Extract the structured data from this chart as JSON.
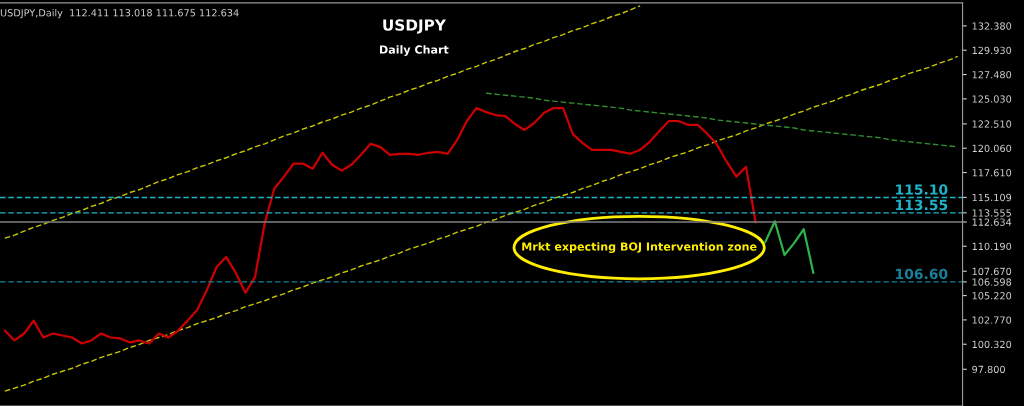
{
  "chart_data": {
    "type": "line",
    "title": "USDJPY",
    "subtitle": "Daily Chart",
    "annotations": [
      "USDJPY,Daily  112.411 113.018 111.675 112.634",
      "Mrkt expecting BOJ Intervention zone"
    ],
    "categories": [
      null,
      null,
      null,
      null,
      null,
      null,
      null,
      null,
      null,
      null,
      null,
      null,
      null,
      null,
      null,
      null,
      null,
      null,
      null,
      null,
      null,
      null,
      null,
      null,
      null,
      null,
      null,
      null,
      null,
      null,
      null,
      null,
      null,
      null,
      null,
      null,
      null,
      null,
      null,
      null,
      null,
      null,
      null,
      null,
      null,
      null,
      null,
      null,
      null,
      null,
      null,
      null,
      null,
      null,
      null,
      null,
      null,
      null,
      null,
      null,
      null,
      null,
      null,
      null,
      null,
      null,
      null,
      null,
      null,
      null,
      null,
      null,
      null,
      null,
      null,
      null,
      null,
      null,
      null,
      null,
      null,
      null,
      null,
      null,
      null,
      null,
      null,
      null,
      null,
      null,
      null,
      null,
      null,
      null,
      null,
      null,
      null,
      null,
      null,
      null
    ],
    "series": [
      {
        "color": "#c8c800",
        "line_style": "dashed",
        "values": [
          111.0,
          111.3,
          111.7,
          112.1,
          112.4,
          112.8,
          113.1,
          113.5,
          113.8,
          114.2,
          114.5,
          114.9,
          115.2,
          115.6,
          115.9,
          116.3,
          116.7,
          117.0,
          117.4,
          117.7,
          118.1,
          118.4,
          118.8,
          119.1,
          119.5,
          119.8,
          120.2,
          120.5,
          120.9,
          121.3,
          121.6,
          122.0,
          122.3,
          122.7,
          123.0,
          123.4,
          123.7,
          124.1,
          124.4,
          124.8,
          125.2,
          125.5,
          125.9,
          126.2,
          126.6,
          126.9,
          127.3,
          127.6,
          128.0,
          128.3,
          128.7,
          129.0,
          129.4,
          129.8,
          130.1,
          130.5,
          130.8,
          131.2,
          131.5,
          131.9,
          132.2,
          132.6,
          132.9,
          133.3,
          133.6,
          134.0,
          134.4,
          null,
          null,
          null,
          null,
          null,
          null,
          null,
          null,
          null,
          null,
          null,
          null,
          null,
          null,
          null,
          null,
          null,
          null,
          null,
          null,
          null,
          null,
          null,
          null,
          null,
          null,
          null,
          null,
          null,
          null,
          null,
          null,
          null
        ]
      },
      {
        "color": "#c8c800",
        "line_style": "dashed",
        "values": [
          95.6,
          95.9,
          96.2,
          96.6,
          96.9,
          97.3,
          97.6,
          97.9,
          98.3,
          98.6,
          99.0,
          99.3,
          99.6,
          100.0,
          100.3,
          100.7,
          101.0,
          101.3,
          101.7,
          102.0,
          102.4,
          102.7,
          103.0,
          103.4,
          103.7,
          104.1,
          104.4,
          104.7,
          105.1,
          105.4,
          105.8,
          106.1,
          106.5,
          106.8,
          107.1,
          107.5,
          107.8,
          108.2,
          108.5,
          108.8,
          109.2,
          109.5,
          109.9,
          110.2,
          110.5,
          110.9,
          111.2,
          111.6,
          111.9,
          112.2,
          112.6,
          112.9,
          113.3,
          113.6,
          113.9,
          114.3,
          114.6,
          115.0,
          115.3,
          115.6,
          116.0,
          116.3,
          116.7,
          117.0,
          117.4,
          117.7,
          118.0,
          118.4,
          118.7,
          119.1,
          119.4,
          119.7,
          120.1,
          120.4,
          120.8,
          121.1,
          121.4,
          121.8,
          122.1,
          122.5,
          122.8,
          123.1,
          123.5,
          123.8,
          124.2,
          124.5,
          124.8,
          125.2,
          125.5,
          125.9,
          126.2,
          126.5,
          126.9,
          127.2,
          127.6,
          127.9,
          128.2,
          128.6,
          128.9,
          129.3
        ]
      },
      {
        "color": "#2f8f2f",
        "line_style": "dashed",
        "values": [
          null,
          null,
          null,
          null,
          null,
          null,
          null,
          null,
          null,
          null,
          null,
          null,
          null,
          null,
          null,
          null,
          null,
          null,
          null,
          null,
          null,
          null,
          null,
          null,
          null,
          null,
          null,
          null,
          null,
          null,
          null,
          null,
          null,
          null,
          null,
          null,
          null,
          null,
          null,
          null,
          null,
          null,
          null,
          null,
          null,
          null,
          null,
          null,
          null,
          null,
          125.6,
          125.5,
          125.4,
          125.3,
          125.2,
          125.1,
          124.9,
          124.8,
          124.7,
          124.6,
          124.5,
          124.4,
          124.3,
          124.2,
          124.1,
          123.9,
          123.8,
          123.7,
          123.6,
          123.5,
          123.4,
          123.3,
          123.2,
          123.1,
          122.9,
          122.8,
          122.7,
          122.6,
          122.5,
          122.4,
          122.3,
          122.2,
          122.1,
          121.9,
          121.8,
          121.7,
          121.6,
          121.5,
          121.4,
          121.3,
          121.2,
          121.1,
          120.9,
          120.8,
          120.7,
          120.6,
          120.5,
          120.4,
          120.3,
          120.2
        ]
      },
      {
        "color": "#cc0000",
        "line_style": "solid",
        "values": [
          101.7,
          100.7,
          101.4,
          102.7,
          101.0,
          101.4,
          101.2,
          101.0,
          100.4,
          100.7,
          101.4,
          101.0,
          100.9,
          100.5,
          100.7,
          100.4,
          101.4,
          101.0,
          101.7,
          102.7,
          103.8,
          105.8,
          108.1,
          109.1,
          107.5,
          105.5,
          107.1,
          112.5,
          116.0,
          117.2,
          118.5,
          118.5,
          118.0,
          119.6,
          118.4,
          117.8,
          118.4,
          119.4,
          120.5,
          120.2,
          119.4,
          119.5,
          119.5,
          119.4,
          119.6,
          119.7,
          119.5,
          120.9,
          122.8,
          124.1,
          123.7,
          123.4,
          123.3,
          122.5,
          121.9,
          122.6,
          123.6,
          124.1,
          124.1,
          121.5,
          120.6,
          119.9,
          119.9,
          119.9,
          119.7,
          119.5,
          119.9,
          120.7,
          121.8,
          122.8,
          122.8,
          122.4,
          122.4,
          121.5,
          120.4,
          118.7,
          117.2,
          118.2,
          112.6,
          null,
          null,
          null,
          null,
          null,
          null,
          null,
          null,
          null,
          null,
          null,
          null,
          null,
          null,
          null,
          null,
          null,
          null,
          null,
          null,
          null
        ]
      },
      {
        "color": "#2db34a",
        "line_style": "solid",
        "values": [
          null,
          null,
          null,
          null,
          null,
          null,
          null,
          null,
          null,
          null,
          null,
          null,
          null,
          null,
          null,
          null,
          null,
          null,
          null,
          null,
          null,
          null,
          null,
          null,
          null,
          null,
          null,
          null,
          null,
          null,
          null,
          null,
          null,
          null,
          null,
          null,
          null,
          null,
          null,
          null,
          null,
          null,
          null,
          null,
          null,
          null,
          null,
          null,
          null,
          null,
          null,
          null,
          null,
          null,
          null,
          null,
          null,
          null,
          null,
          null,
          null,
          null,
          null,
          null,
          null,
          null,
          null,
          null,
          null,
          null,
          null,
          null,
          null,
          null,
          null,
          null,
          null,
          null,
          null,
          110.6,
          112.7,
          109.3,
          110.5,
          111.9,
          107.5,
          null,
          null,
          null,
          null,
          null,
          null,
          null,
          null,
          null,
          null,
          null,
          null,
          null,
          null,
          null
        ]
      }
    ],
    "ylim": [
      94.1,
      134.7
    ],
    "yticks": [
      {
        "value": 97.8,
        "label": "97.800"
      },
      {
        "value": 100.32,
        "label": "100.320"
      },
      {
        "value": 102.77,
        "label": "102.770"
      },
      {
        "value": 105.22,
        "label": "105.220"
      },
      {
        "value": 106.598,
        "label": "106.598"
      },
      {
        "value": 107.67,
        "label": "107.670"
      },
      {
        "value": 110.19,
        "label": "110.190"
      },
      {
        "value": 112.634,
        "label": "112.634"
      },
      {
        "value": 113.555,
        "label": "113.555"
      },
      {
        "value": 115.109,
        "label": "115.109"
      },
      {
        "value": 117.61,
        "label": "117.610"
      },
      {
        "value": 120.06,
        "label": "120.060"
      },
      {
        "value": 122.51,
        "label": "122.510"
      },
      {
        "value": 125.03,
        "label": "125.030"
      },
      {
        "value": 127.48,
        "label": "127.480"
      },
      {
        "value": 129.93,
        "label": "129.930"
      },
      {
        "value": 132.38,
        "label": "132.380"
      }
    ],
    "tick_labels": "y",
    "grid": false,
    "ref_lines": [
      {
        "axis": "y",
        "value": 115.1,
        "label": "115.10",
        "color": "#1fb5c8",
        "line_style": "dashed"
      },
      {
        "axis": "y",
        "value": 113.55,
        "label": "113.55",
        "color": "#1fb5c8",
        "line_style": "dashed"
      },
      {
        "axis": "y",
        "value": 112.634,
        "label": null,
        "color": "#808080",
        "line_style": "solid"
      },
      {
        "axis": "y",
        "value": 106.6,
        "label": "106.60",
        "color": "#1a7f9a",
        "line_style": "dashed"
      }
    ]
  }
}
